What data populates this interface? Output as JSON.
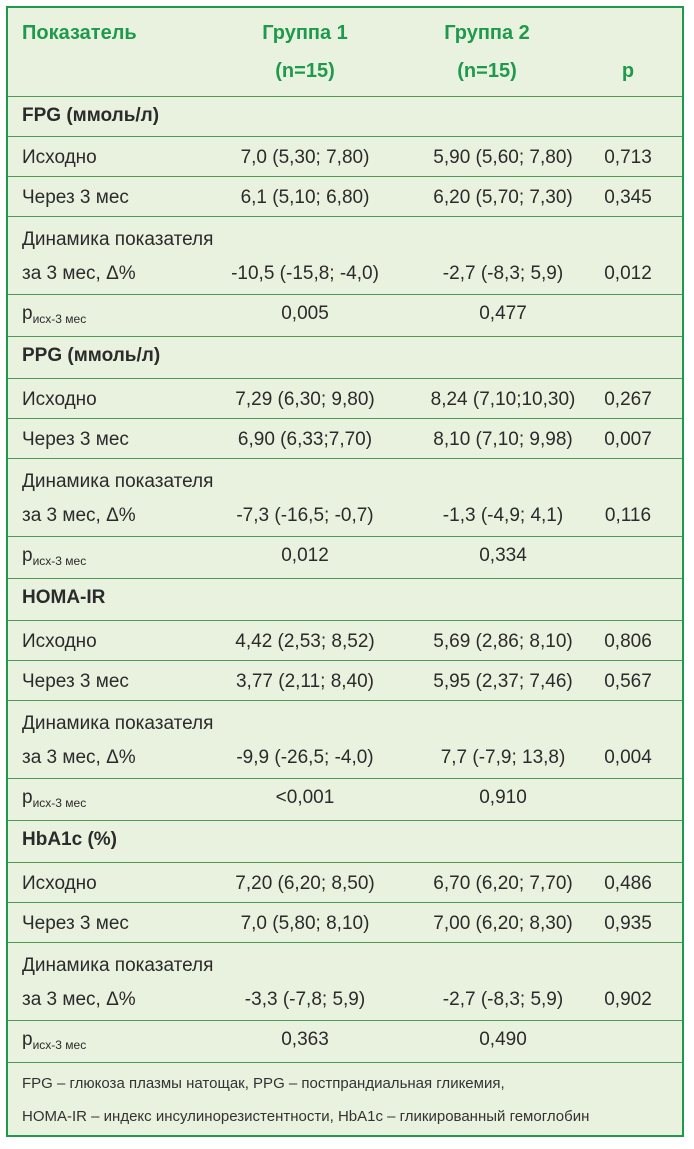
{
  "header": {
    "col_label": "Показатель",
    "group1_line1": "Группа 1",
    "group1_line2": "(n=15)",
    "group2_line1": "Группа 2",
    "group2_line2": "(n=15)",
    "p_label": "p"
  },
  "sections": [
    {
      "title": "FPG (ммоль/л)",
      "baseline": {
        "label": "Исходно",
        "g1": "7,0 (5,30; 7,80)",
        "g2": "5,90 (5,60; 7,80)",
        "p": "0,713"
      },
      "month3": {
        "label": "Через 3 мес",
        "g1": "6,1 (5,10; 6,80)",
        "g2": "6,20 (5,70; 7,30)",
        "p": "0,345"
      },
      "dynamics": {
        "label1": "Динамика показателя",
        "label2": "за 3 мес, Δ%",
        "g1": "-10,5 (-15,8; -4,0)",
        "g2": "-2,7 (-8,3; 5,9)",
        "p": "0,012"
      },
      "pchange": {
        "p": "p",
        "sub": "исх-3 мес",
        "g1": "0,005",
        "g2": "0,477"
      }
    },
    {
      "title": "PPG (ммоль/л)",
      "baseline": {
        "label": "Исходно",
        "g1": "7,29 (6,30; 9,80)",
        "g2": "8,24 (7,10;10,30)",
        "p": "0,267"
      },
      "month3": {
        "label": "Через 3 мес",
        "g1": "6,90 (6,33;7,70)",
        "g2": "8,10 (7,10; 9,98)",
        "p": "0,007"
      },
      "dynamics": {
        "label1": "Динамика показателя",
        "label2": "за 3 мес, Δ%",
        "g1": "-7,3 (-16,5; -0,7)",
        "g2": "-1,3 (-4,9; 4,1)",
        "p": "0,116"
      },
      "pchange": {
        "p": "p",
        "sub": "исх-3 мес",
        "g1": "0,012",
        "g2": "0,334"
      }
    },
    {
      "title": "HOMA-IR",
      "baseline": {
        "label": "Исходно",
        "g1": "4,42 (2,53; 8,52)",
        "g2": "5,69 (2,86; 8,10)",
        "p": "0,806"
      },
      "month3": {
        "label": "Через 3 мес",
        "g1": "3,77 (2,11; 8,40)",
        "g2": "5,95 (2,37; 7,46)",
        "p": "0,567"
      },
      "dynamics": {
        "label1": "Динамика показателя",
        "label2": "за 3 мес, Δ%",
        "g1": "-9,9 (-26,5; -4,0)",
        "g2": "7,7 (-7,9; 13,8)",
        "p": "0,004"
      },
      "pchange": {
        "p": "p",
        "sub": "исх-3 мес",
        "g1": "<0,001",
        "g2": "0,910"
      }
    },
    {
      "title": "HbA1c (%)",
      "baseline": {
        "label": "Исходно",
        "g1": "7,20 (6,20; 8,50)",
        "g2": "6,70 (6,20; 7,70)",
        "p": "0,486"
      },
      "month3": {
        "label": "Через 3 мес",
        "g1": "7,0 (5,80; 8,10)",
        "g2": "7,00 (6,20; 8,30)",
        "p": "0,935"
      },
      "dynamics": {
        "label1": "Динамика показателя",
        "label2": "за 3 мес, Δ%",
        "g1": "-3,3 (-7,8; 5,9)",
        "g2": "-2,7 (-8,3; 5,9)",
        "p": "0,902"
      },
      "pchange": {
        "p": "p",
        "sub": "исх-3 мес",
        "g1": "0,363",
        "g2": "0,490"
      }
    }
  ],
  "footnote": {
    "line1": "FPG – глюкоза плазмы натощак, PPG – постпрандиальная гликемия,",
    "line2": "HOMA-IR – индекс инсулинорезистентности, HbA1c – гликированный гемоглобин"
  },
  "colors": {
    "accent": "#1f9a4d",
    "background": "#e9f2df",
    "text": "#2b2b2b"
  }
}
